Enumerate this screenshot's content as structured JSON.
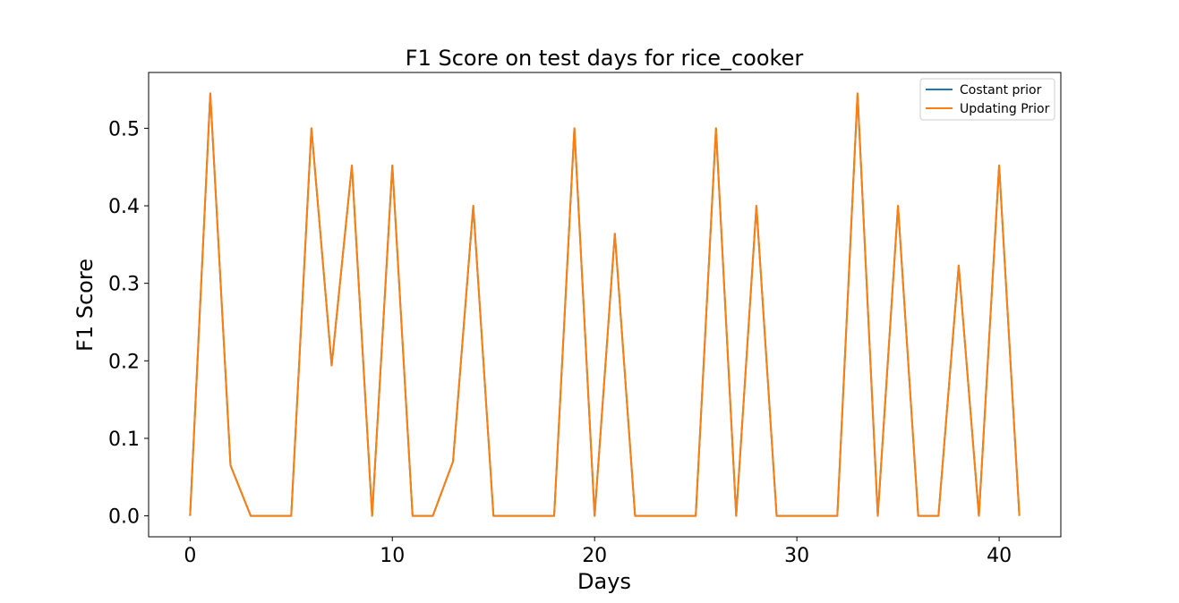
{
  "chart_data": {
    "type": "line",
    "title": "F1 Score on test days for rice_cooker",
    "xlabel": "Days",
    "ylabel": "F1 Score",
    "xlim": [
      -2.05,
      43.05
    ],
    "ylim": [
      -0.027,
      0.572
    ],
    "xticks": [
      0,
      10,
      20,
      30,
      40
    ],
    "yticks": [
      0.0,
      0.1,
      0.2,
      0.3,
      0.4,
      0.5
    ],
    "ytick_labels": [
      "0.0",
      "0.1",
      "0.2",
      "0.3",
      "0.4",
      "0.5"
    ],
    "grid": false,
    "legend_position": "top-right",
    "x": [
      0,
      1,
      2,
      3,
      4,
      5,
      6,
      7,
      8,
      9,
      10,
      11,
      12,
      13,
      14,
      15,
      16,
      17,
      18,
      19,
      20,
      21,
      22,
      23,
      24,
      25,
      26,
      27,
      28,
      29,
      30,
      31,
      32,
      33,
      34,
      35,
      36,
      37,
      38,
      39,
      40,
      41
    ],
    "series": [
      {
        "name": "Costant prior",
        "color": "#1f77b4",
        "values": [
          0,
          0.545,
          0.065,
          0,
          0,
          0,
          0.5,
          0.194,
          0.452,
          0,
          0.452,
          0,
          0,
          0.07,
          0.4,
          0,
          0,
          0,
          0,
          0.5,
          0,
          0.364,
          0,
          0,
          0,
          0,
          0.5,
          0,
          0.4,
          0,
          0,
          0,
          0,
          0.545,
          0,
          0.4,
          0,
          0,
          0.323,
          0,
          0.452,
          0
        ]
      },
      {
        "name": "Updating Prior",
        "color": "#ff7f0e",
        "values": [
          0,
          0.545,
          0.065,
          0,
          0,
          0,
          0.5,
          0.194,
          0.452,
          0,
          0.452,
          0,
          0,
          0.07,
          0.4,
          0,
          0,
          0,
          0,
          0.5,
          0,
          0.364,
          0,
          0,
          0,
          0,
          0.5,
          0,
          0.4,
          0,
          0,
          0,
          0,
          0.545,
          0,
          0.4,
          0,
          0,
          0.323,
          0,
          0.452,
          0
        ]
      }
    ]
  }
}
